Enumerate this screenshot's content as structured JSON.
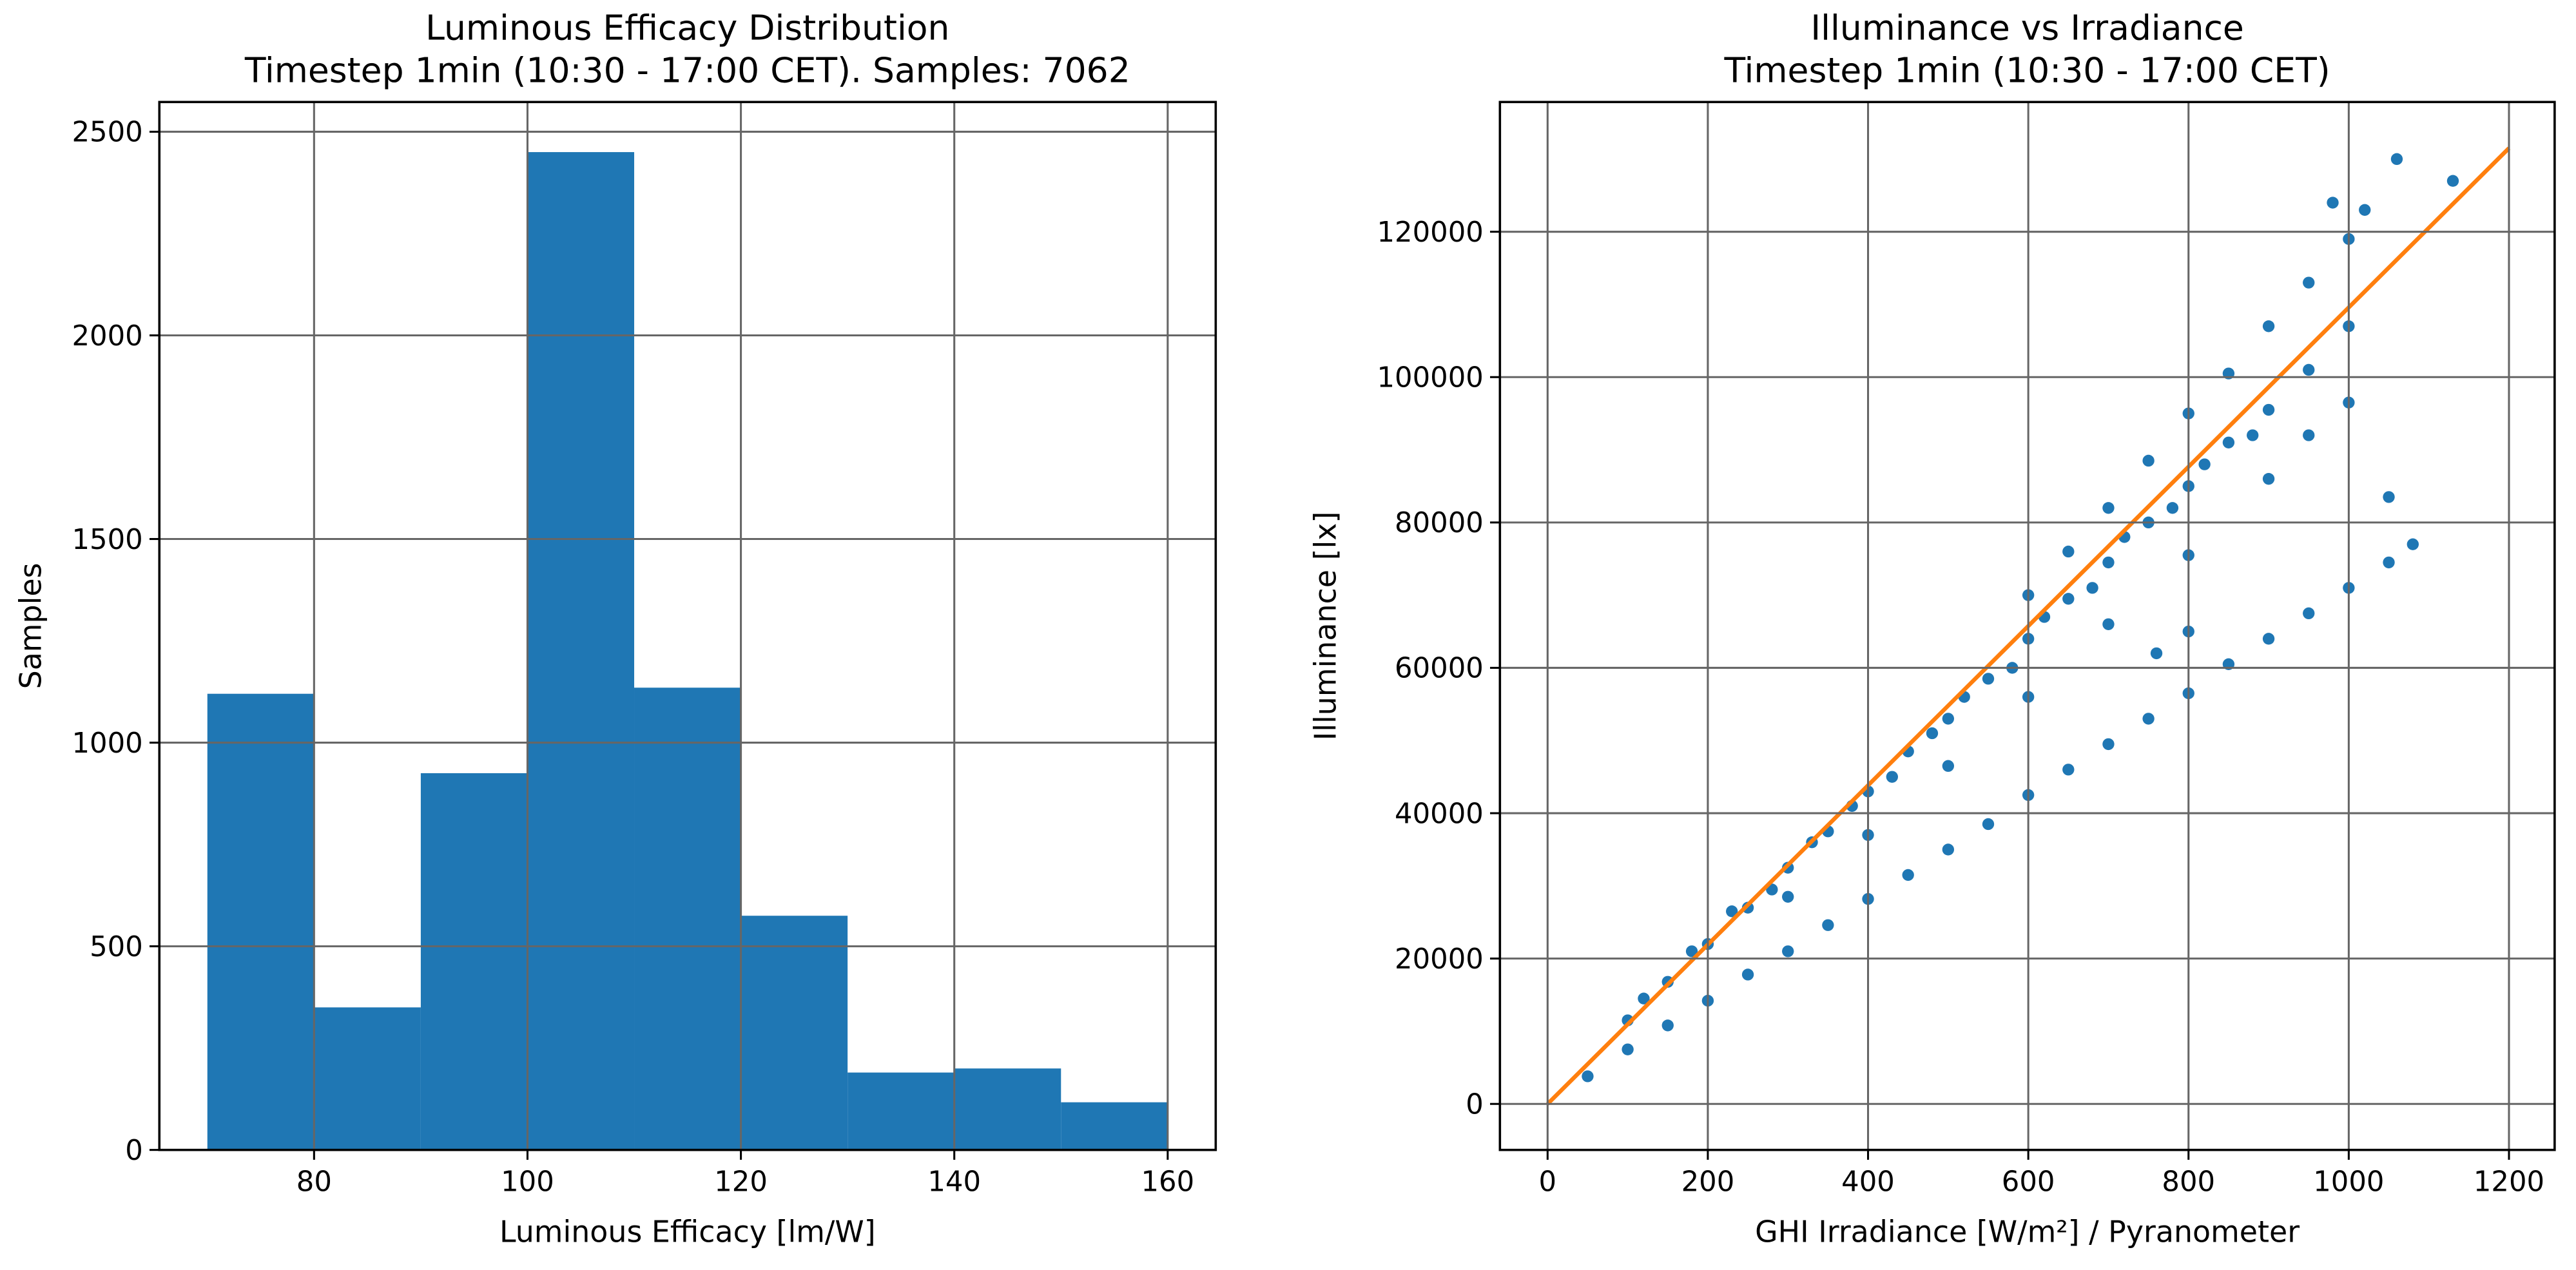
{
  "chart_data": [
    {
      "type": "histogram",
      "title": "Luminous Efficacy Distribution",
      "subtitle": "Timestep 1min (10:30 - 17:00 CET). Samples: 7062",
      "x_label": "Luminous Efficacy [lm/W]",
      "y_label": "Samples",
      "bins": [
        70,
        80,
        90,
        100,
        110,
        120,
        130,
        140,
        150,
        160
      ],
      "values": [
        1120,
        350,
        925,
        2450,
        1135,
        575,
        190,
        200,
        117
      ],
      "color": "#1f77b4",
      "xlim": [
        65.5,
        164.5
      ],
      "ylim": [
        0,
        2573
      ],
      "xticks": [
        80,
        100,
        120,
        140,
        160
      ],
      "yticks": [
        0,
        500,
        1000,
        1500,
        2000,
        2500
      ],
      "grid": true
    },
    {
      "type": "scatter",
      "title": "Illuminance vs Irradiance",
      "subtitle": "Timestep 1min (10:30 - 17:00 CET)",
      "x_label": "GHI Irradiance [W/m²] / Pyranometer",
      "y_label": "Illuminance [lx]",
      "xlim": [
        -59.5,
        1257
      ],
      "ylim": [
        -6330,
        137850
      ],
      "xticks": [
        0,
        200,
        400,
        600,
        800,
        1000,
        1200
      ],
      "yticks": [
        0,
        20000,
        40000,
        60000,
        80000,
        100000,
        120000
      ],
      "grid": true,
      "series": [
        {
          "type": "scatter",
          "color": "#1f77b4",
          "x": [
            100,
            150,
            200,
            250,
            300,
            350,
            400,
            450,
            500,
            550,
            600,
            650,
            700,
            750,
            800,
            850,
            900,
            950,
            1000,
            120,
            180,
            230,
            280,
            330,
            380,
            430,
            480,
            520,
            580,
            620,
            680,
            720,
            780,
            820,
            880,
            600,
            650,
            700,
            750,
            800,
            850,
            900,
            950,
            1000,
            1020,
            1060,
            1130,
            980,
            300,
            400,
            500,
            600,
            700,
            800,
            900,
            1000,
            1050,
            950,
            50,
            100,
            150,
            200,
            250,
            300,
            350,
            400,
            450,
            500,
            550,
            600,
            650,
            700,
            750,
            800,
            850,
            900,
            950,
            1000,
            1050,
            1080,
            760,
            800
          ],
          "values": [
            11500,
            16800,
            22000,
            27000,
            32500,
            37500,
            43000,
            48500,
            53000,
            58500,
            64000,
            69500,
            74500,
            80000,
            85000,
            91000,
            95500,
            101000,
            107000,
            14500,
            21000,
            26500,
            29500,
            36000,
            41000,
            45000,
            51000,
            56000,
            60000,
            67000,
            71000,
            78000,
            82000,
            88000,
            92000,
            70000,
            76000,
            82000,
            88500,
            95000,
            100500,
            107000,
            113000,
            119000,
            123000,
            130000,
            127000,
            124000,
            28500,
            37000,
            46500,
            56000,
            66000,
            75500,
            86000,
            96500,
            83500,
            92000,
            3800,
            7500,
            10800,
            14200,
            17800,
            21000,
            24600,
            28200,
            31500,
            35000,
            38500,
            42500,
            46000,
            49500,
            53000,
            56500,
            60500,
            64000,
            67500,
            71000,
            74500,
            77000,
            62000,
            65000
          ]
        },
        {
          "type": "line",
          "color": "#ff7f0e",
          "x": [
            0,
            1200
          ],
          "values": [
            0,
            131500
          ]
        }
      ]
    }
  ]
}
